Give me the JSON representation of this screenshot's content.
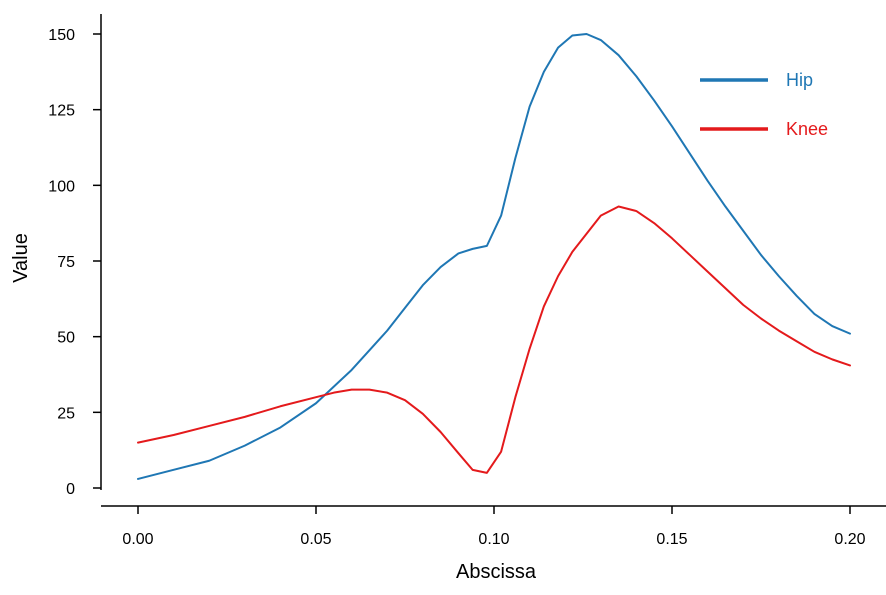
{
  "chart_data": {
    "type": "line",
    "title": "",
    "xlabel": "Abscissa",
    "ylabel": "Value",
    "xlim": [
      -0.01,
      0.21
    ],
    "ylim": [
      0,
      157
    ],
    "xticks": [
      0.0,
      0.05,
      0.1,
      0.15,
      0.2
    ],
    "xtick_labels": [
      "0.00",
      "0.05",
      "0.10",
      "0.15",
      "0.20"
    ],
    "yticks": [
      0,
      25,
      50,
      75,
      100,
      125,
      150
    ],
    "ytick_labels": [
      "0",
      "25",
      "50",
      "75",
      "100",
      "125",
      "150"
    ],
    "grid": false,
    "legend": "top-right",
    "series": [
      {
        "name": "Hip",
        "color": "#1f77b4",
        "x": [
          0.0,
          0.01,
          0.02,
          0.03,
          0.04,
          0.05,
          0.055,
          0.06,
          0.065,
          0.07,
          0.075,
          0.08,
          0.085,
          0.09,
          0.094,
          0.098,
          0.102,
          0.106,
          0.11,
          0.114,
          0.118,
          0.122,
          0.126,
          0.13,
          0.135,
          0.14,
          0.145,
          0.15,
          0.155,
          0.16,
          0.165,
          0.17,
          0.175,
          0.18,
          0.185,
          0.19,
          0.195,
          0.2
        ],
        "y": [
          3,
          6,
          9,
          14,
          20,
          28,
          33.5,
          39,
          45.5,
          52,
          59.5,
          67,
          73,
          77.5,
          79,
          80,
          90,
          109,
          126,
          137.5,
          145.5,
          149.5,
          150,
          148,
          143,
          136,
          128,
          119.5,
          110.5,
          101.5,
          93,
          85,
          77,
          70,
          63.5,
          57.5,
          53.5,
          51
        ]
      },
      {
        "name": "Knee",
        "color": "#e41a1c",
        "x": [
          0.0,
          0.01,
          0.02,
          0.03,
          0.04,
          0.05,
          0.055,
          0.06,
          0.065,
          0.07,
          0.075,
          0.08,
          0.085,
          0.09,
          0.094,
          0.098,
          0.102,
          0.106,
          0.11,
          0.114,
          0.118,
          0.122,
          0.126,
          0.13,
          0.135,
          0.14,
          0.145,
          0.15,
          0.155,
          0.16,
          0.165,
          0.17,
          0.175,
          0.18,
          0.185,
          0.19,
          0.195,
          0.2
        ],
        "y": [
          15,
          17.5,
          20.5,
          23.5,
          27,
          30,
          31.5,
          32.5,
          32.5,
          31.5,
          29,
          24.5,
          18.5,
          11.5,
          6,
          5,
          12,
          30,
          46,
          60,
          70,
          78,
          84,
          90,
          93,
          91.5,
          87.5,
          82.5,
          77,
          71.5,
          66,
          60.5,
          56,
          52,
          48.5,
          45,
          42.5,
          40.5
        ]
      }
    ]
  }
}
